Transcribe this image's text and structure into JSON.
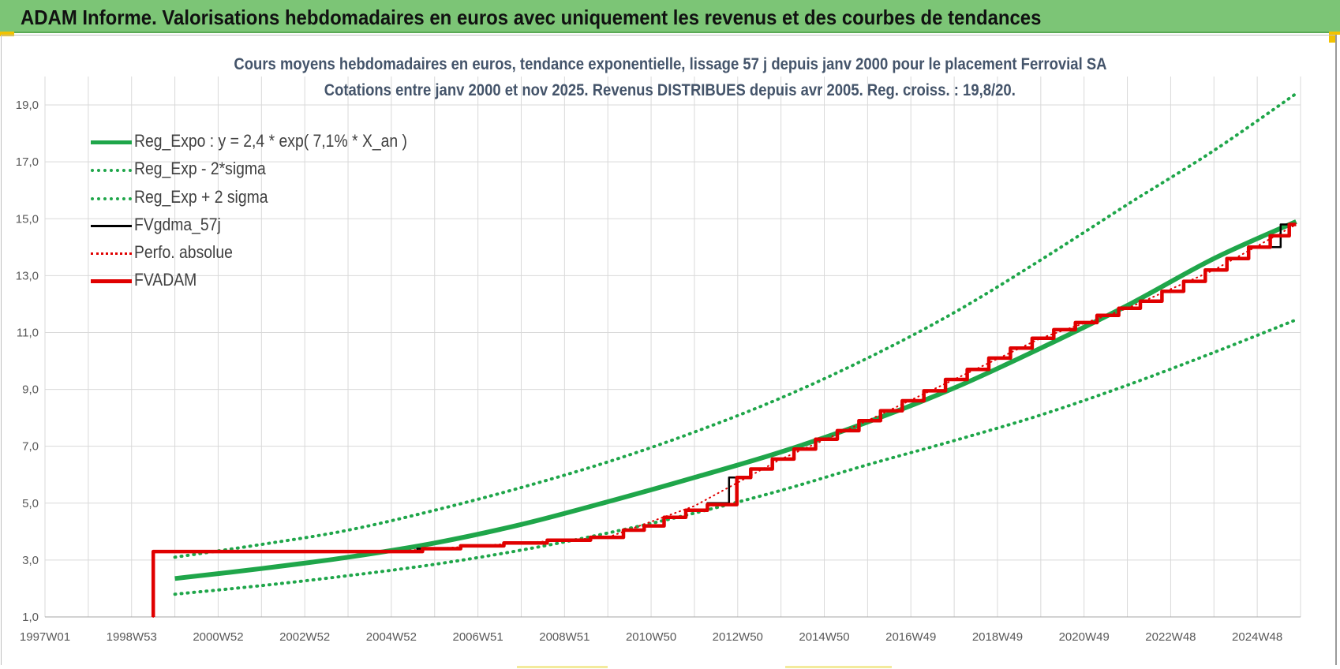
{
  "header": {
    "title": "ADAM Informe. Valorisations hebdomadaires en euros avec uniquement les revenus et des courbes de tendances"
  },
  "colors": {
    "header_bg": "#7cc576",
    "reg_green": "#1fa64a",
    "black": "#000000",
    "red": "#e00000",
    "grid": "#d9d9d9"
  },
  "chart_data": {
    "type": "line",
    "title_line1": "Cours moyens hebdomadaires en euros, tendance exponentielle, lissage 57 j depuis janv 2000  pour le placement Ferrovial SA",
    "title_line2": "Cotations entre janv 2000 et nov 2025. Revenus DISTRIBUES depuis avr 2005.  Reg. croiss. : 19,8/20.",
    "xlabel": "",
    "ylabel": "",
    "x_ticks": [
      "1997W01",
      "1998W53",
      "2000W52",
      "2002W52",
      "2004W52",
      "2006W51",
      "2008W51",
      "2010W50",
      "2012W50",
      "2014W50",
      "2016W49",
      "2018W49",
      "2020W49",
      "2022W48",
      "2024W48"
    ],
    "xlim": [
      1997.0,
      2026.0
    ],
    "y_ticks": [
      "1,0",
      "3,0",
      "5,0",
      "7,0",
      "9,0",
      "11,0",
      "13,0",
      "15,0",
      "17,0",
      "19,0"
    ],
    "ylim": [
      1.0,
      20.0
    ],
    "grid": true,
    "legend_position": "top-left",
    "legend": [
      {
        "label": "Reg_Expo : y = 2,4 * exp( 7,1% *  X_an )",
        "style": "solid-thick",
        "color": "#1fa64a"
      },
      {
        "label": "Reg_Exp - 2*sigma",
        "style": "dotted",
        "color": "#1fa64a"
      },
      {
        "label": "Reg_Exp + 2 sigma",
        "style": "dotted",
        "color": "#1fa64a"
      },
      {
        "label": "FVgdma_57j",
        "style": "solid",
        "color": "#000000"
      },
      {
        "label": "Perfo. absolue",
        "style": "dotted",
        "color": "#e00000"
      },
      {
        "label": "FVADAM",
        "style": "solid-thick",
        "color": "#e00000"
      }
    ],
    "series": [
      {
        "name": "Reg_Expo : y = 2,4 * exp( 7,1% *  X_an )",
        "style": "solid-thick",
        "x": [
          2000.0,
          2002.0,
          2004.0,
          2006.0,
          2008.0,
          2010.0,
          2012.0,
          2014.0,
          2016.0,
          2018.0,
          2020.0,
          2022.0,
          2024.0,
          2025.9
        ],
        "y": [
          2.35,
          2.7,
          3.1,
          3.6,
          4.25,
          5.05,
          5.9,
          6.8,
          7.85,
          9.05,
          10.45,
          11.95,
          13.6,
          14.9
        ]
      },
      {
        "name": "Reg_Exp - 2*sigma",
        "style": "dotted",
        "x": [
          2000.0,
          2002.0,
          2004.0,
          2006.0,
          2008.0,
          2010.0,
          2012.0,
          2014.0,
          2016.0,
          2018.0,
          2020.0,
          2022.0,
          2024.0,
          2025.9
        ],
        "y": [
          1.8,
          2.1,
          2.45,
          2.85,
          3.35,
          3.95,
          4.65,
          5.45,
          6.35,
          7.2,
          8.1,
          9.15,
          10.3,
          11.45
        ]
      },
      {
        "name": "Reg_Exp + 2 sigma",
        "style": "dotted",
        "x": [
          2000.0,
          2002.0,
          2004.0,
          2006.0,
          2008.0,
          2010.0,
          2012.0,
          2014.0,
          2016.0,
          2018.0,
          2020.0,
          2022.0,
          2024.0,
          2025.9
        ],
        "y": [
          3.1,
          3.55,
          4.05,
          4.75,
          5.55,
          6.45,
          7.5,
          8.7,
          10.1,
          11.7,
          13.55,
          15.5,
          17.4,
          19.4
        ]
      },
      {
        "name": "FVgdma_57j",
        "style": "solid",
        "x": [
          2000.0,
          2005.0,
          2006.0,
          2007.0,
          2008.0,
          2009.0,
          2010.0,
          2010.6,
          2011.0,
          2011.5,
          2012.0,
          2012.5,
          2013.0,
          2013.5,
          2014.0,
          2014.5,
          2015.0,
          2015.5,
          2016.0,
          2016.5,
          2017.0,
          2017.5,
          2018.0,
          2018.5,
          2019.0,
          2019.5,
          2020.0,
          2020.5,
          2021.0,
          2021.5,
          2022.0,
          2022.5,
          2023.0,
          2023.5,
          2024.0,
          2024.5,
          2025.0,
          2025.9
        ],
        "y": [
          3.3,
          3.3,
          3.4,
          3.5,
          3.6,
          3.7,
          3.8,
          4.05,
          4.2,
          4.5,
          4.75,
          5.0,
          5.9,
          6.2,
          6.55,
          6.9,
          7.25,
          7.55,
          7.9,
          8.25,
          8.6,
          8.95,
          9.35,
          9.7,
          10.1,
          10.45,
          10.8,
          11.1,
          11.35,
          11.6,
          11.85,
          12.1,
          12.45,
          12.8,
          13.2,
          13.6,
          14.0,
          14.8
        ]
      },
      {
        "name": "Perfo. absolue",
        "style": "dotted",
        "x": [
          1999.5,
          1999.5,
          2005.0,
          2008.0,
          2010.0,
          2012.0,
          2014.0,
          2016.0,
          2018.0,
          2020.0,
          2022.0,
          2024.0,
          2025.9
        ],
        "y": [
          1.0,
          3.3,
          3.3,
          3.6,
          3.8,
          4.9,
          6.55,
          7.9,
          9.35,
          10.8,
          11.85,
          13.2,
          14.8
        ]
      },
      {
        "name": "FVADAM",
        "style": "solid-thick",
        "x": [
          1999.5,
          1999.5,
          2005.3,
          2006.0,
          2007.0,
          2008.0,
          2009.0,
          2010.0,
          2010.6,
          2011.0,
          2011.5,
          2012.0,
          2012.5,
          2012.95,
          2013.0,
          2013.5,
          2014.0,
          2014.5,
          2015.0,
          2015.5,
          2016.0,
          2016.5,
          2017.0,
          2017.5,
          2018.0,
          2018.5,
          2019.0,
          2019.5,
          2020.0,
          2020.5,
          2021.0,
          2021.5,
          2022.0,
          2022.5,
          2023.0,
          2023.5,
          2024.0,
          2024.5,
          2025.0,
          2025.5,
          2025.9
        ],
        "y": [
          1.0,
          3.3,
          3.3,
          3.4,
          3.5,
          3.6,
          3.7,
          3.8,
          4.05,
          4.2,
          4.5,
          4.75,
          4.95,
          4.95,
          5.9,
          6.2,
          6.55,
          6.9,
          7.25,
          7.55,
          7.9,
          8.25,
          8.6,
          8.95,
          9.35,
          9.7,
          10.1,
          10.45,
          10.8,
          11.1,
          11.35,
          11.6,
          11.85,
          12.1,
          12.45,
          12.8,
          13.2,
          13.6,
          14.0,
          14.4,
          14.8
        ]
      }
    ]
  }
}
